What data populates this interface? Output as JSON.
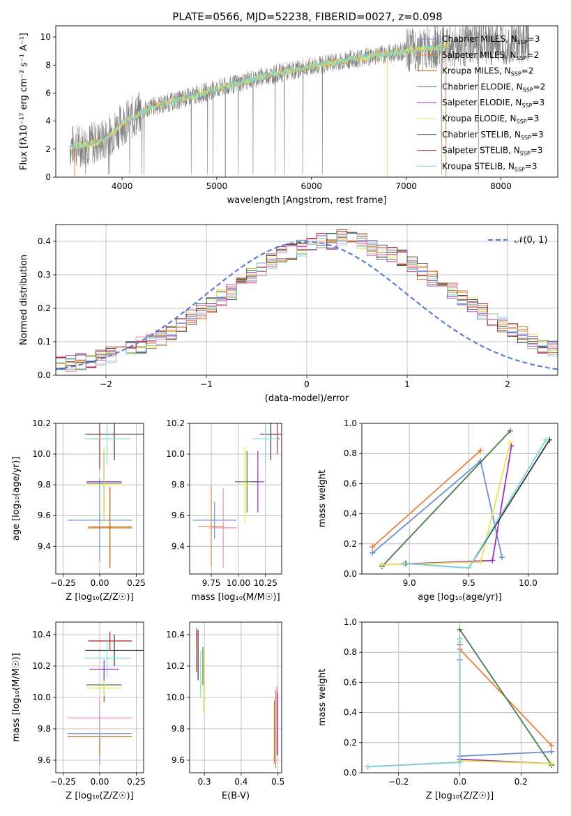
{
  "figure_title": "PLATE=0566, MJD=52238, FIBERID=0027, z=0.098",
  "legend": {
    "entries": [
      {
        "label": "Chabrier MILES, N",
        "sub": "SSP",
        "tail": "=3",
        "color": "#6a8fd8"
      },
      {
        "label": "Salpeter MILES, N",
        "sub": "SSP",
        "tail": "=2",
        "color": "#e8823a"
      },
      {
        "label": "Kroupa MILES, N",
        "sub": "SSP",
        "tail": "=2",
        "color": "#b36b12"
      },
      {
        "label": "Chabrier ELODIE, N",
        "sub": "SSP",
        "tail": "=2",
        "color": "#4a7a4a"
      },
      {
        "label": "Salpeter ELODIE, N",
        "sub": "SSP",
        "tail": "=3",
        "color": "#9b30c0"
      },
      {
        "label": "Kroupa ELODIE, N",
        "sub": "SSP",
        "tail": "=3",
        "color": "#e6e64c"
      },
      {
        "label": "Chabrier STELIB, N",
        "sub": "SSP",
        "tail": "=3",
        "color": "#333333"
      },
      {
        "label": "Salpeter STELIB, N",
        "sub": "SSP",
        "tail": "=3",
        "color": "#b22222"
      },
      {
        "label": "Kroupa STELIB, N",
        "sub": "SSP",
        "tail": "=3",
        "color": "#7fd8e0"
      }
    ],
    "normal_label": "𝒩(0, 1)"
  },
  "chart_data": [
    {
      "id": "spectrum",
      "type": "line",
      "xlabel": "wavelength [Angstrom, rest frame]",
      "ylabel": "Flux [fλ10⁻¹⁷ erg cm⁻² s⁻¹ A⁻¹]",
      "xlim": [
        3300,
        8600
      ],
      "ylim": [
        0,
        10.8
      ],
      "xticks": [
        4000,
        5000,
        6000,
        7000,
        8000
      ],
      "yticks": [
        0,
        2,
        4,
        6,
        8,
        10
      ],
      "grid": false,
      "legend_position": "top-right",
      "continuum": {
        "x": [
          3450,
          3600,
          3800,
          4000,
          4300,
          4600,
          5000,
          5500,
          6000,
          6500,
          7000,
          7500,
          8000,
          8300
        ],
        "y": [
          2.2,
          2.3,
          2.6,
          3.8,
          5.0,
          5.5,
          6.3,
          7.2,
          7.9,
          8.5,
          9.0,
          9.4,
          9.6,
          9.8
        ]
      }
    },
    {
      "id": "residuals",
      "type": "line",
      "xlabel": "(data-model)/error",
      "ylabel": "Normed distribution",
      "xlim": [
        -2.5,
        2.5
      ],
      "ylim": [
        0,
        0.45
      ],
      "xticks": [
        -2,
        -1,
        0,
        1,
        2
      ],
      "yticks": [
        0.0,
        0.1,
        0.2,
        0.3,
        0.4
      ],
      "grid": true,
      "legend_position": "top-right",
      "normal": {
        "mean": 0,
        "sigma": 1
      },
      "histogram": {
        "bin_width": 0.1,
        "base": [
          0.03,
          0.035,
          0.04,
          0.045,
          0.05,
          0.06,
          0.07,
          0.08,
          0.09,
          0.1,
          0.11,
          0.13,
          0.15,
          0.17,
          0.19,
          0.21,
          0.23,
          0.25,
          0.27,
          0.3,
          0.32,
          0.34,
          0.36,
          0.37,
          0.38,
          0.39,
          0.4,
          0.4,
          0.41,
          0.41,
          0.4,
          0.38,
          0.37,
          0.36,
          0.35,
          0.33,
          0.31,
          0.29,
          0.27,
          0.25,
          0.23,
          0.21,
          0.19,
          0.17,
          0.15,
          0.13,
          0.12,
          0.1,
          0.09,
          0.08
        ]
      }
    },
    {
      "id": "age-vs-Z",
      "type": "scatter",
      "xlabel": "Z [log₁₀(Z/Z☉)]",
      "ylabel": "age  [log₁₀(age/yr)]",
      "xlim": [
        -0.3,
        0.3
      ],
      "ylim": [
        9.22,
        10.2
      ],
      "xticks": [
        -0.25,
        0.0,
        0.25
      ],
      "xticklabels": [
        "−0.25",
        "0.00",
        "0.25"
      ],
      "yticks": [
        9.4,
        9.6,
        9.8,
        10.0,
        10.2
      ],
      "grid": true,
      "points": [
        {
          "x": 0.0,
          "xerr": 0.22,
          "y": 9.57,
          "yerr": 0.27,
          "color": "#6a8fd8"
        },
        {
          "x": 0.07,
          "xerr": 0.15,
          "y": 9.53,
          "yerr": 0.26,
          "color": "#e8823a"
        },
        {
          "x": 0.07,
          "xerr": 0.15,
          "y": 9.52,
          "yerr": 0.26,
          "color": "#b36b12"
        },
        {
          "x": 0.03,
          "xerr": 0.12,
          "y": 9.81,
          "yerr": 0.2,
          "color": "#4a7a4a"
        },
        {
          "x": 0.03,
          "xerr": 0.12,
          "y": 9.82,
          "yerr": 0.2,
          "color": "#9b30c0"
        },
        {
          "x": 0.03,
          "xerr": 0.12,
          "y": 9.8,
          "yerr": 0.25,
          "color": "#e6e64c"
        },
        {
          "x": 0.1,
          "xerr": 0.2,
          "y": 10.13,
          "yerr": 0.17,
          "color": "#333333"
        },
        {
          "x": 0.0,
          "xerr": 0.07,
          "y": 10.1,
          "yerr": 0.2,
          "color": "#b22222"
        },
        {
          "x": 0.05,
          "xerr": 0.16,
          "y": 10.1,
          "yerr": 0.17,
          "color": "#7fd8e0"
        }
      ]
    },
    {
      "id": "age-vs-mass",
      "type": "scatter",
      "xlabel": "mass [log₁₀(M/M☉)]",
      "ylabel": "",
      "xlim": [
        9.55,
        10.4
      ],
      "ylim": [
        9.22,
        10.2
      ],
      "xticks": [
        9.75,
        10.0,
        10.25
      ],
      "xticklabels": [
        "9.75",
        "10.00",
        "10.25"
      ],
      "yticks": [
        9.4,
        9.6,
        9.8,
        10.0,
        10.2
      ],
      "grid": true,
      "points": [
        {
          "x": 9.78,
          "xerr": 0.2,
          "y": 9.57,
          "yerr": 0.12,
          "color": "#6a8fd8"
        },
        {
          "x": 9.75,
          "xerr": 0.12,
          "y": 9.53,
          "yerr": 0.26,
          "color": "#e8823a"
        },
        {
          "x": 9.86,
          "xerr": 0.13,
          "y": 9.52,
          "yerr": 0.26,
          "color": "#f08cc0"
        },
        {
          "x": 10.08,
          "xerr": 0.11,
          "y": 9.82,
          "yerr": 0.2,
          "color": "#4a7a4a"
        },
        {
          "x": 10.18,
          "xerr": 0.06,
          "y": 9.82,
          "yerr": 0.2,
          "color": "#9b30c0"
        },
        {
          "x": 10.06,
          "xerr": 0.05,
          "y": 9.8,
          "yerr": 0.25,
          "color": "#e6e64c"
        },
        {
          "x": 10.3,
          "xerr": 0.1,
          "y": 10.13,
          "yerr": 0.17,
          "color": "#333333"
        },
        {
          "x": 10.36,
          "xerr": 0.02,
          "y": 10.1,
          "yerr": 0.1,
          "color": "#b22222"
        },
        {
          "x": 10.25,
          "xerr": 0.12,
          "y": 10.1,
          "yerr": 0.17,
          "color": "#7fd8e0"
        }
      ]
    },
    {
      "id": "weight-vs-age",
      "type": "line",
      "xlabel": "age  [log₁₀(age/yr)]",
      "ylabel": "mass weight",
      "xlim": [
        8.6,
        10.25
      ],
      "ylim": [
        0,
        1.0
      ],
      "xticks": [
        9.0,
        9.5,
        10.0
      ],
      "xticklabels": [
        "9.0",
        "9.5",
        "10.0"
      ],
      "yticks": [
        0.0,
        0.2,
        0.4,
        0.6,
        0.8,
        1.0
      ],
      "grid": true,
      "series": [
        {
          "color": "#6a8fd8",
          "x": [
            8.69,
            9.6,
            9.78
          ],
          "y": [
            0.14,
            0.75,
            0.11
          ]
        },
        {
          "color": "#e8823a",
          "x": [
            8.69,
            9.6
          ],
          "y": [
            0.18,
            0.82
          ]
        },
        {
          "color": "#4a7a4a",
          "x": [
            8.77,
            9.85
          ],
          "y": [
            0.05,
            0.95
          ]
        },
        {
          "color": "#9b30c0",
          "x": [
            8.77,
            9.7,
            9.86
          ],
          "y": [
            0.06,
            0.09,
            0.85
          ]
        },
        {
          "color": "#e6e64c",
          "x": [
            8.77,
            9.6,
            9.85
          ],
          "y": [
            0.06,
            0.08,
            0.87
          ]
        },
        {
          "color": "#333333",
          "x": [
            8.97,
            9.5,
            10.18
          ],
          "y": [
            0.07,
            0.04,
            0.89
          ]
        },
        {
          "color": "#7fd8e0",
          "x": [
            8.95,
            9.5,
            10.15
          ],
          "y": [
            0.07,
            0.04,
            0.89
          ]
        }
      ]
    },
    {
      "id": "mass-vs-Z",
      "type": "scatter",
      "xlabel": "Z [log₁₀(Z/Z☉)]",
      "ylabel": "mass [log₁₀(M/M☉)]",
      "xlim": [
        -0.3,
        0.3
      ],
      "ylim": [
        9.52,
        10.48
      ],
      "xticks": [
        -0.25,
        0.0,
        0.25
      ],
      "xticklabels": [
        "−0.25",
        "0.00",
        "0.25"
      ],
      "yticks": [
        9.6,
        9.8,
        10.0,
        10.2,
        10.4
      ],
      "grid": true,
      "points": [
        {
          "x": 0.0,
          "xerr": 0.22,
          "y": 9.77,
          "yerr": 0.2,
          "color": "#6a8fd8"
        },
        {
          "x": 0.0,
          "xerr": 0.22,
          "y": 9.75,
          "yerr": 0.12,
          "color": "#b36b12"
        },
        {
          "x": 0.0,
          "xerr": 0.22,
          "y": 9.87,
          "yerr": 0.13,
          "color": "#f08cc0"
        },
        {
          "x": 0.03,
          "xerr": 0.12,
          "y": 10.08,
          "yerr": 0.11,
          "color": "#4a7a4a"
        },
        {
          "x": 0.03,
          "xerr": 0.1,
          "y": 10.18,
          "yerr": 0.06,
          "color": "#9b30c0"
        },
        {
          "x": 0.03,
          "xerr": 0.12,
          "y": 10.06,
          "yerr": 0.05,
          "color": "#e6e64c"
        },
        {
          "x": 0.1,
          "xerr": 0.2,
          "y": 10.3,
          "yerr": 0.1,
          "color": "#333333"
        },
        {
          "x": 0.07,
          "xerr": 0.15,
          "y": 10.36,
          "yerr": 0.06,
          "color": "#b22222"
        },
        {
          "x": 0.05,
          "xerr": 0.16,
          "y": 10.25,
          "yerr": 0.12,
          "color": "#7fd8e0"
        }
      ]
    },
    {
      "id": "mass-vs-EBV",
      "type": "scatter",
      "xlabel": "E(B-V)",
      "ylabel": "",
      "xlim": [
        0.26,
        0.51
      ],
      "ylim": [
        9.52,
        10.48
      ],
      "xticks": [
        0.3,
        0.4,
        0.5
      ],
      "xticklabels": [
        "0.3",
        "0.4",
        "0.5"
      ],
      "yticks": [
        9.6,
        9.8,
        10.0,
        10.2,
        10.4
      ],
      "grid": true,
      "points": [
        {
          "x": 0.279,
          "xerr": 0,
          "y": 10.3,
          "yerr": 0.14,
          "color": "#b22222"
        },
        {
          "x": 0.283,
          "xerr": 0,
          "y": 10.27,
          "yerr": 0.16,
          "color": "#333333"
        },
        {
          "x": 0.29,
          "xerr": 0,
          "y": 10.15,
          "yerr": 0.15,
          "color": "#7fd8e0"
        },
        {
          "x": 0.296,
          "xerr": 0,
          "y": 10.2,
          "yerr": 0.12,
          "color": "#4a7a4a"
        },
        {
          "x": 0.298,
          "xerr": 0,
          "y": 10.1,
          "yerr": 0.2,
          "color": "#e6e64c"
        },
        {
          "x": 0.49,
          "xerr": 0,
          "y": 9.78,
          "yerr": 0.2,
          "color": "#b36b12"
        },
        {
          "x": 0.494,
          "xerr": 0,
          "y": 9.8,
          "yerr": 0.25,
          "color": "#e8823a"
        },
        {
          "x": 0.497,
          "xerr": 0,
          "y": 9.85,
          "yerr": 0.22,
          "color": "#f08cc0"
        },
        {
          "x": 0.499,
          "xerr": 0,
          "y": 9.83,
          "yerr": 0.2,
          "color": "#9b30c0"
        }
      ]
    },
    {
      "id": "weight-vs-Z",
      "type": "line",
      "xlabel": "Z [log₁₀(Z/Z☉)]",
      "ylabel": "mass weight",
      "xlim": [
        -0.32,
        0.32
      ],
      "ylim": [
        0,
        1.0
      ],
      "xticks": [
        -0.2,
        0.0,
        0.2
      ],
      "xticklabels": [
        "−0.2",
        "0.0",
        "0.2"
      ],
      "yticks": [
        0.0,
        0.2,
        0.4,
        0.6,
        0.8,
        1.0
      ],
      "grid": true,
      "series": [
        {
          "color": "#6a8fd8",
          "x": [
            0.0,
            0.0,
            0.3
          ],
          "y": [
            0.75,
            0.11,
            0.14
          ]
        },
        {
          "color": "#e8823a",
          "x": [
            0.0,
            0.3
          ],
          "y": [
            0.82,
            0.18
          ]
        },
        {
          "color": "#4a7a4a",
          "x": [
            0.0,
            0.3
          ],
          "y": [
            0.95,
            0.05
          ]
        },
        {
          "color": "#9b30c0",
          "x": [
            0.0,
            0.0,
            0.3
          ],
          "y": [
            0.85,
            0.09,
            0.06
          ]
        },
        {
          "color": "#e6e64c",
          "x": [
            0.0,
            0.0,
            0.3
          ],
          "y": [
            0.87,
            0.08,
            0.06
          ]
        },
        {
          "color": "#333333",
          "x": [
            -0.3,
            0.0,
            0.0
          ],
          "y": [
            0.04,
            0.07,
            0.89
          ]
        },
        {
          "color": "#7fd8e0",
          "x": [
            -0.3,
            0.0,
            0.0
          ],
          "y": [
            0.04,
            0.07,
            0.89
          ]
        }
      ]
    }
  ]
}
